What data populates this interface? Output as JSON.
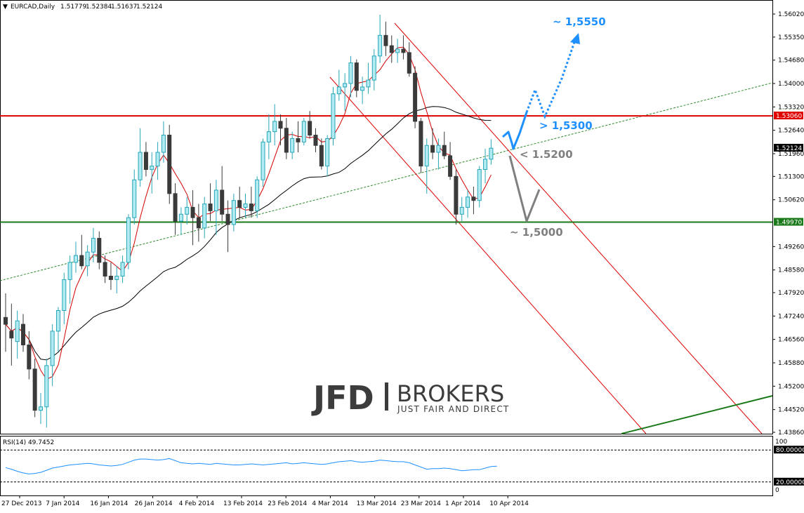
{
  "header": {
    "symbol": "EURCAD,Daily",
    "ohlc": [
      "1.51779",
      "1.52384",
      "1.51637",
      "1.52124"
    ]
  },
  "colors": {
    "bull_fill": "#b2ebf2",
    "bull_border": "#26a6b8",
    "bear_fill": "#3a3a3a",
    "ma_fast": "#d40000",
    "ma_slow": "#000000",
    "resistance": "#e00000",
    "support": "#1a7a1a",
    "trend_dashed": "#2e8b2e",
    "channel": "#e00000",
    "forecast_blue": "#1e90ff",
    "forecast_gray": "#7f7f7f",
    "rsi_line": "#1e90ff"
  },
  "chart_data": [
    {
      "type": "candlestick",
      "symbol": "EURCAD",
      "timeframe": "Daily",
      "ylim": [
        1.4386,
        1.5602
      ],
      "y_ticks": [
        "1.56020",
        "1.55350",
        "1.54680",
        "1.54000",
        "1.53320",
        "1.52640",
        "1.51960",
        "1.51300",
        "1.50620",
        "1.49260",
        "1.48580",
        "1.47920",
        "1.47240",
        "1.46560",
        "1.45880",
        "1.45200",
        "1.44520",
        "1.43860"
      ],
      "x_ticks": [
        "27 Dec 2013",
        "7 Jan 2014",
        "16 Jan 2014",
        "26 Jan 2014",
        "4 Feb 2014",
        "13 Feb 2014",
        "23 Feb 2014",
        "4 Mar 2014",
        "13 Mar 2014",
        "23 Mar 2014",
        "1 Apr 2014",
        "10 Apr 2014"
      ],
      "resistance": {
        "value": 1.5306,
        "label": "1.53060"
      },
      "support": {
        "value": 1.4997,
        "label": "1.49970"
      },
      "current_price": {
        "value": 1.52124,
        "label": "1.52124"
      },
      "candles": [
        {
          "o": 1.472,
          "h": 1.479,
          "l": 1.462,
          "c": 1.47
        },
        {
          "o": 1.468,
          "h": 1.476,
          "l": 1.458,
          "c": 1.466
        },
        {
          "o": 1.465,
          "h": 1.474,
          "l": 1.46,
          "c": 1.471
        },
        {
          "o": 1.47,
          "h": 1.473,
          "l": 1.462,
          "c": 1.464
        },
        {
          "o": 1.464,
          "h": 1.468,
          "l": 1.454,
          "c": 1.457
        },
        {
          "o": 1.457,
          "h": 1.46,
          "l": 1.443,
          "c": 1.445
        },
        {
          "o": 1.445,
          "h": 1.45,
          "l": 1.441,
          "c": 1.446
        },
        {
          "o": 1.446,
          "h": 1.46,
          "l": 1.44,
          "c": 1.458
        },
        {
          "o": 1.458,
          "h": 1.47,
          "l": 1.452,
          "c": 1.468
        },
        {
          "o": 1.468,
          "h": 1.475,
          "l": 1.462,
          "c": 1.474
        },
        {
          "o": 1.474,
          "h": 1.485,
          "l": 1.47,
          "c": 1.483
        },
        {
          "o": 1.483,
          "h": 1.49,
          "l": 1.476,
          "c": 1.488
        },
        {
          "o": 1.488,
          "h": 1.494,
          "l": 1.485,
          "c": 1.49
        },
        {
          "o": 1.49,
          "h": 1.496,
          "l": 1.486,
          "c": 1.487
        },
        {
          "o": 1.487,
          "h": 1.493,
          "l": 1.484,
          "c": 1.491
        },
        {
          "o": 1.491,
          "h": 1.498,
          "l": 1.488,
          "c": 1.495
        },
        {
          "o": 1.495,
          "h": 1.497,
          "l": 1.486,
          "c": 1.488
        },
        {
          "o": 1.488,
          "h": 1.49,
          "l": 1.482,
          "c": 1.484
        },
        {
          "o": 1.484,
          "h": 1.488,
          "l": 1.48,
          "c": 1.483
        },
        {
          "o": 1.483,
          "h": 1.487,
          "l": 1.479,
          "c": 1.484
        },
        {
          "o": 1.484,
          "h": 1.49,
          "l": 1.482,
          "c": 1.488
        },
        {
          "o": 1.488,
          "h": 1.502,
          "l": 1.486,
          "c": 1.501
        },
        {
          "o": 1.501,
          "h": 1.515,
          "l": 1.499,
          "c": 1.512
        },
        {
          "o": 1.512,
          "h": 1.527,
          "l": 1.51,
          "c": 1.52
        },
        {
          "o": 1.52,
          "h": 1.523,
          "l": 1.513,
          "c": 1.515
        },
        {
          "o": 1.515,
          "h": 1.52,
          "l": 1.508,
          "c": 1.516
        },
        {
          "o": 1.516,
          "h": 1.523,
          "l": 1.512,
          "c": 1.52
        },
        {
          "o": 1.52,
          "h": 1.529,
          "l": 1.517,
          "c": 1.525
        },
        {
          "o": 1.525,
          "h": 1.528,
          "l": 1.505,
          "c": 1.508
        },
        {
          "o": 1.508,
          "h": 1.511,
          "l": 1.496,
          "c": 1.5
        },
        {
          "o": 1.5,
          "h": 1.504,
          "l": 1.496,
          "c": 1.502
        },
        {
          "o": 1.502,
          "h": 1.507,
          "l": 1.499,
          "c": 1.504
        },
        {
          "o": 1.504,
          "h": 1.509,
          "l": 1.493,
          "c": 1.501
        },
        {
          "o": 1.501,
          "h": 1.505,
          "l": 1.494,
          "c": 1.498
        },
        {
          "o": 1.498,
          "h": 1.507,
          "l": 1.495,
          "c": 1.505
        },
        {
          "o": 1.505,
          "h": 1.511,
          "l": 1.5,
          "c": 1.503
        },
        {
          "o": 1.503,
          "h": 1.512,
          "l": 1.496,
          "c": 1.509
        },
        {
          "o": 1.509,
          "h": 1.516,
          "l": 1.5,
          "c": 1.502
        },
        {
          "o": 1.502,
          "h": 1.506,
          "l": 1.491,
          "c": 1.499
        },
        {
          "o": 1.499,
          "h": 1.508,
          "l": 1.497,
          "c": 1.506
        },
        {
          "o": 1.506,
          "h": 1.51,
          "l": 1.501,
          "c": 1.504
        },
        {
          "o": 1.504,
          "h": 1.508,
          "l": 1.501,
          "c": 1.505
        },
        {
          "o": 1.505,
          "h": 1.51,
          "l": 1.501,
          "c": 1.503
        },
        {
          "o": 1.503,
          "h": 1.513,
          "l": 1.501,
          "c": 1.512
        },
        {
          "o": 1.512,
          "h": 1.524,
          "l": 1.51,
          "c": 1.523
        },
        {
          "o": 1.523,
          "h": 1.531,
          "l": 1.518,
          "c": 1.526
        },
        {
          "o": 1.526,
          "h": 1.534,
          "l": 1.522,
          "c": 1.529
        },
        {
          "o": 1.529,
          "h": 1.531,
          "l": 1.522,
          "c": 1.527
        },
        {
          "o": 1.527,
          "h": 1.53,
          "l": 1.518,
          "c": 1.52
        },
        {
          "o": 1.52,
          "h": 1.526,
          "l": 1.518,
          "c": 1.524
        },
        {
          "o": 1.524,
          "h": 1.529,
          "l": 1.52,
          "c": 1.523
        },
        {
          "o": 1.523,
          "h": 1.53,
          "l": 1.522,
          "c": 1.529
        },
        {
          "o": 1.529,
          "h": 1.532,
          "l": 1.524,
          "c": 1.525
        },
        {
          "o": 1.525,
          "h": 1.527,
          "l": 1.52,
          "c": 1.522
        },
        {
          "o": 1.522,
          "h": 1.524,
          "l": 1.515,
          "c": 1.516
        },
        {
          "o": 1.516,
          "h": 1.525,
          "l": 1.513,
          "c": 1.524
        },
        {
          "o": 1.524,
          "h": 1.539,
          "l": 1.522,
          "c": 1.537
        },
        {
          "o": 1.537,
          "h": 1.544,
          "l": 1.535,
          "c": 1.539
        },
        {
          "o": 1.539,
          "h": 1.543,
          "l": 1.532,
          "c": 1.54
        },
        {
          "o": 1.54,
          "h": 1.548,
          "l": 1.536,
          "c": 1.546
        },
        {
          "o": 1.546,
          "h": 1.547,
          "l": 1.536,
          "c": 1.538
        },
        {
          "o": 1.538,
          "h": 1.542,
          "l": 1.534,
          "c": 1.539
        },
        {
          "o": 1.539,
          "h": 1.546,
          "l": 1.537,
          "c": 1.541
        },
        {
          "o": 1.541,
          "h": 1.55,
          "l": 1.538,
          "c": 1.548
        },
        {
          "o": 1.548,
          "h": 1.56,
          "l": 1.546,
          "c": 1.554
        },
        {
          "o": 1.554,
          "h": 1.558,
          "l": 1.548,
          "c": 1.551
        },
        {
          "o": 1.551,
          "h": 1.554,
          "l": 1.546,
          "c": 1.549
        },
        {
          "o": 1.549,
          "h": 1.553,
          "l": 1.546,
          "c": 1.55
        },
        {
          "o": 1.55,
          "h": 1.554,
          "l": 1.547,
          "c": 1.549
        },
        {
          "o": 1.549,
          "h": 1.552,
          "l": 1.542,
          "c": 1.543
        },
        {
          "o": 1.543,
          "h": 1.545,
          "l": 1.527,
          "c": 1.529
        },
        {
          "o": 1.529,
          "h": 1.53,
          "l": 1.514,
          "c": 1.516
        },
        {
          "o": 1.516,
          "h": 1.524,
          "l": 1.508,
          "c": 1.522
        },
        {
          "o": 1.522,
          "h": 1.527,
          "l": 1.518,
          "c": 1.52
        },
        {
          "o": 1.52,
          "h": 1.524,
          "l": 1.515,
          "c": 1.522
        },
        {
          "o": 1.522,
          "h": 1.526,
          "l": 1.518,
          "c": 1.519
        },
        {
          "o": 1.519,
          "h": 1.523,
          "l": 1.512,
          "c": 1.513
        },
        {
          "o": 1.513,
          "h": 1.515,
          "l": 1.499,
          "c": 1.502
        },
        {
          "o": 1.502,
          "h": 1.507,
          "l": 1.5,
          "c": 1.504
        },
        {
          "o": 1.504,
          "h": 1.509,
          "l": 1.501,
          "c": 1.507
        },
        {
          "o": 1.507,
          "h": 1.51,
          "l": 1.502,
          "c": 1.506
        },
        {
          "o": 1.506,
          "h": 1.516,
          "l": 1.504,
          "c": 1.515
        },
        {
          "o": 1.515,
          "h": 1.521,
          "l": 1.511,
          "c": 1.518
        },
        {
          "o": 1.518,
          "h": 1.5238,
          "l": 1.5164,
          "c": 1.5212
        }
      ],
      "annotations": [
        {
          "text": "~ 1,5550",
          "color": "blue"
        },
        {
          "text": "> 1,5300",
          "color": "blue"
        },
        {
          "text": "< 1.5200",
          "color": "gray"
        },
        {
          "text": "~ 1,5000",
          "color": "gray"
        }
      ]
    },
    {
      "type": "line",
      "title": "RSI(14) 49.7452",
      "ylim": [
        0,
        100
      ],
      "y_ticks": [
        "100",
        "80.00000",
        "20.00000",
        "0"
      ],
      "levels": [
        80,
        20
      ],
      "values": [
        47,
        44,
        40,
        37,
        35,
        36,
        38,
        42,
        46,
        48,
        50,
        52,
        53,
        54,
        55,
        54,
        52,
        51,
        50,
        51,
        53,
        57,
        61,
        63,
        63,
        62,
        61,
        62,
        64,
        60,
        56,
        55,
        54,
        55,
        54,
        53,
        55,
        54,
        53,
        52,
        52,
        53,
        54,
        53,
        52,
        53,
        54,
        55,
        56,
        54,
        55,
        56,
        55,
        54,
        53,
        54,
        56,
        58,
        59,
        60,
        58,
        57,
        58,
        59,
        61,
        60,
        59,
        58,
        58,
        56,
        52,
        48,
        44,
        45,
        45,
        46,
        45,
        43,
        41,
        42,
        43,
        43,
        46,
        49,
        49.7452
      ]
    }
  ],
  "logo": {
    "mark": "JFD",
    "name": "BROKERS",
    "tagline": "JUST FAIR AND DIRECT"
  }
}
